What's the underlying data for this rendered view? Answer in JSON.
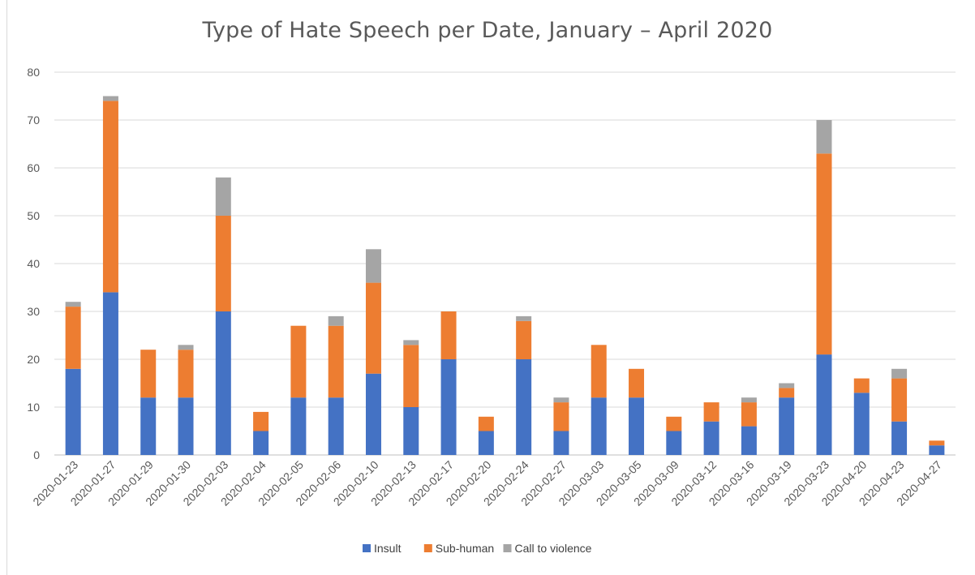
{
  "chart_data": {
    "type": "bar",
    "stacked": true,
    "title": "Type of Hate Speech per Date, January – April 2020",
    "xlabel": "",
    "ylabel": "",
    "ylim": [
      0,
      80
    ],
    "yticks": [
      0,
      10,
      20,
      30,
      40,
      50,
      60,
      70,
      80
    ],
    "grid": true,
    "legend_position": "bottom",
    "categories": [
      "2020-01-23",
      "2020-01-27",
      "2020-01-29",
      "2020-01-30",
      "2020-02-03",
      "2020-02-04",
      "2020-02-05",
      "2020-02-06",
      "2020-02-10",
      "2020-02-13",
      "2020-02-17",
      "2020-02-20",
      "2020-02-24",
      "2020-02-27",
      "2020-03-03",
      "2020-03-05",
      "2020-03-09",
      "2020-03-12",
      "2020-03-16",
      "2020-03-19",
      "2020-03-23",
      "2020-04-20",
      "2020-04-23",
      "2020-04-27"
    ],
    "series": [
      {
        "name": "Insult",
        "color": "#4472c4",
        "values": [
          18,
          34,
          12,
          12,
          30,
          5,
          12,
          12,
          17,
          10,
          20,
          5,
          20,
          5,
          12,
          12,
          5,
          7,
          6,
          12,
          21,
          13,
          7,
          2
        ]
      },
      {
        "name": "Sub-human",
        "color": "#ed7d31",
        "values": [
          13,
          40,
          10,
          10,
          20,
          4,
          15,
          15,
          19,
          13,
          10,
          3,
          8,
          6,
          11,
          6,
          3,
          4,
          5,
          2,
          42,
          3,
          9,
          1
        ]
      },
      {
        "name": "Call to violence",
        "color": "#a5a5a5",
        "values": [
          1,
          1,
          0,
          1,
          8,
          0,
          0,
          2,
          7,
          1,
          0,
          0,
          1,
          1,
          0,
          0,
          0,
          0,
          1,
          1,
          7,
          0,
          2,
          0
        ]
      }
    ]
  }
}
